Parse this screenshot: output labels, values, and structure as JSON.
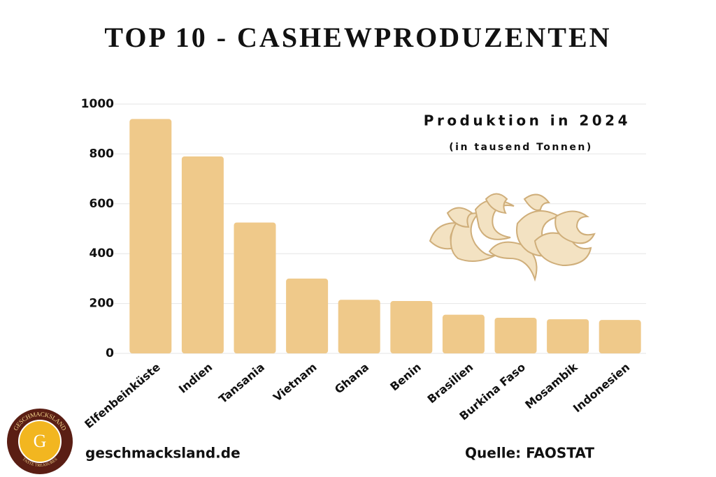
{
  "chart_data": {
    "type": "bar",
    "title": "TOP 10 - CASHEWPRODUZENTEN",
    "subtitle": "Produktion in 2024",
    "unit_note": "(in tausend Tonnen)",
    "categories": [
      "Elfenbeinküste",
      "Indien",
      "Tansania",
      "Vietnam",
      "Ghana",
      "Benin",
      "Brasilien",
      "Burkina Faso",
      "Mosambik",
      "Indonesien"
    ],
    "values": [
      940,
      790,
      525,
      300,
      215,
      210,
      155,
      143,
      137,
      134
    ],
    "color": "#efc98a",
    "ylim": [
      0,
      1000
    ],
    "yticks": [
      0,
      200,
      400,
      600,
      800,
      1000
    ],
    "grid": true,
    "website": "geschmacksland.de",
    "source": "Quelle: FAOSTAT"
  },
  "logo": {
    "name": "GESCHMACKSLAND",
    "letter": "G",
    "tagline": "TASTE TREASURES"
  }
}
